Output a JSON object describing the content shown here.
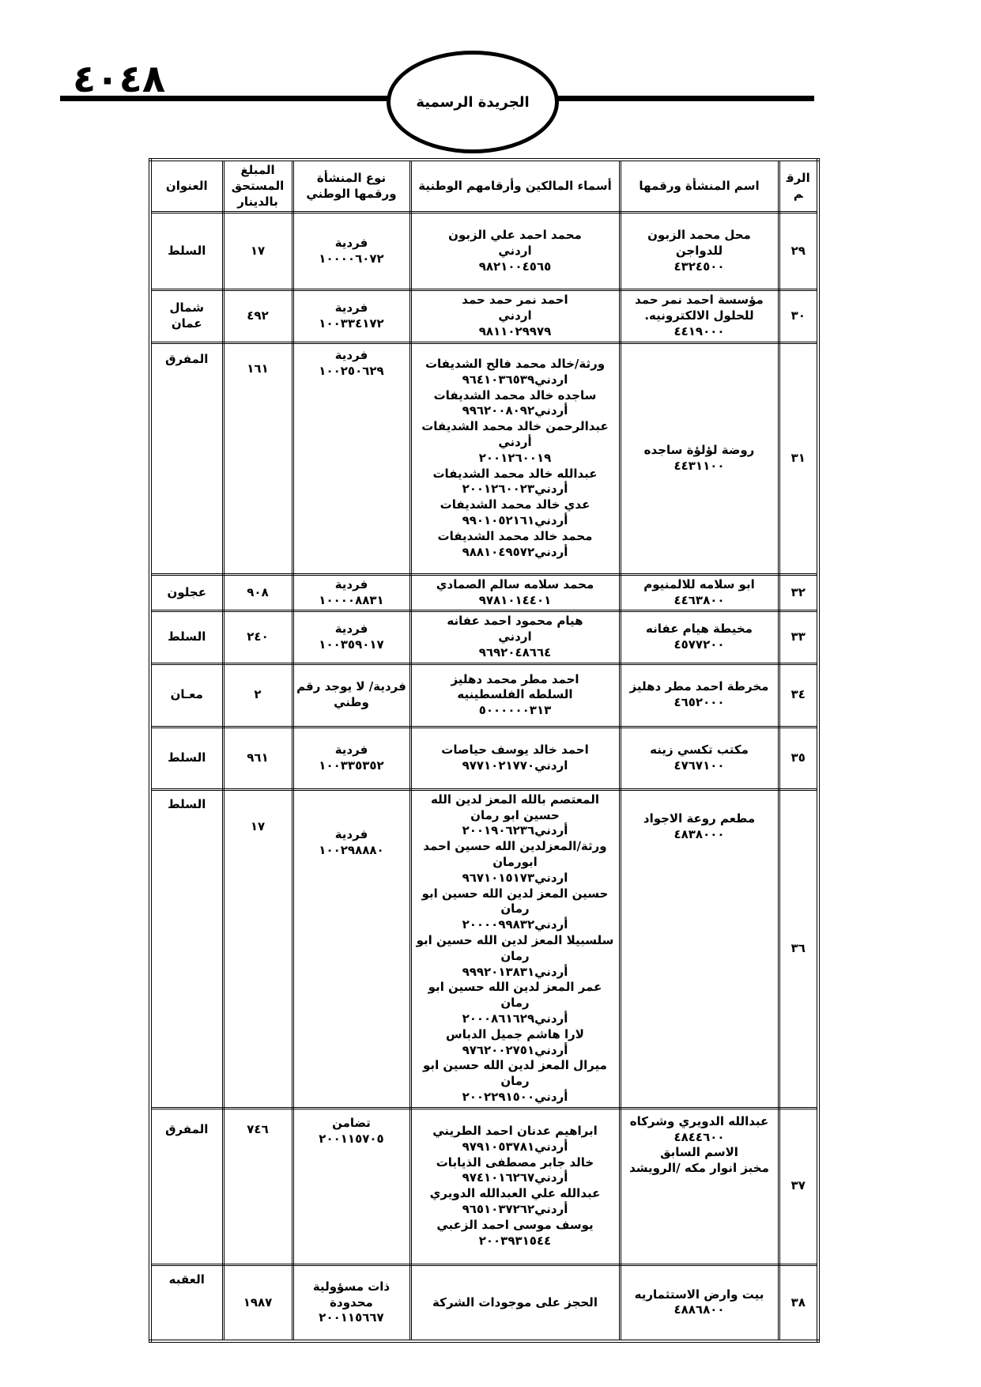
{
  "page": {
    "number": "٤٠٤٨",
    "banner": "الجريدة الرسمية"
  },
  "table": {
    "headers": {
      "num": "الرقم",
      "name": "اسم المنشأة ورقمها",
      "owners": "أسماء المالكين وأرقامهم الوطنية",
      "type": "نوع المنشأة ورقمها الوطني",
      "amount": "المبلغ المستحق بالدينار",
      "address": "العنوان"
    },
    "rows": [
      {
        "num": "٢٩",
        "name": "محل محمد الزبون للدواجن\n٤٣٢٤٥٠٠",
        "owners": "محمد احمد علي الزبون\nاردني\n٩٨٢١٠٠٤٥٦٥",
        "type": "فردية\n١٠٠٠٠٦٠٧٢",
        "amount": "١٧",
        "address": "السلط"
      },
      {
        "num": "٣٠",
        "name": "مؤسسة احمد نمر حمد للحلول الالكترونيه.\n٤٤١٩٠٠٠",
        "owners": "احمد نمر حمد حمد\nاردني\n٩٨١١٠٢٩٩٧٩",
        "type": "فردية\n١٠٠٣٣٤١٧٢",
        "amount": "٤٩٢",
        "address": "شمال عمان"
      },
      {
        "num": "٣١",
        "name": "روضة لؤلؤة ساجده\n٤٤٣١١٠٠",
        "owners": "ورثة/خالد محمد فالح الشديفات\nاردني٩٦٤١٠٣٦٥٣٩\nساجده خالد محمد الشديفات\nأردني٩٩٦٢٠٠٨٠٩٢\nعبدالرحمن خالد محمد الشديفات أردني\n٢٠٠١٢٦٠٠١٩\nعبدالله خالد محمد الشديفات\nأردني٢٠٠١٢٦٠٠٢٣\nعدي خالد محمد الشديفات\nأردني٩٩٠١٠٥٢١٦١\nمحمد خالد محمد الشديفات\nأردني٩٨٨١٠٤٩٥٧٢",
        "type": "فردية\n١٠٠٢٥٠٦٢٩",
        "amount": "١٦١",
        "address": "المفرق"
      },
      {
        "num": "٣٢",
        "name": "ابو سلامه للالمنيوم\n٤٤٦٣٨٠٠",
        "owners": "محمد سلامه سالم الصمادي\n٩٧٨١٠١٤٤٠١",
        "type": "فردية\n١٠٠٠٠٨٨٣١",
        "amount": "٩٠٨",
        "address": "عجلون"
      },
      {
        "num": "٣٣",
        "name": "مخيطة هيام عفانه\n٤٥٧٧٢٠٠",
        "owners": "هيام محمود احمد عفانه\nاردني\n٩٦٩٢٠٤٨٦٦٤",
        "type": "فردية\n١٠٠٣٥٩٠١٧",
        "amount": "٢٤٠",
        "address": "السلط"
      },
      {
        "num": "٣٤",
        "name": "مخرطة احمد مطر دهليز\n٤٦٥٢٠٠٠",
        "owners": "احمد مطر محمد دهليز\nالسلطه الفلسطينيه\n٥٠٠٠٠٠٠٣١٣",
        "type": "فردية/ لا يوجد رقم وطني",
        "amount": "٢",
        "address": "معـان"
      },
      {
        "num": "٣٥",
        "name": "مكتب تكسي زينه\n٤٧٦٧١٠٠",
        "owners": "احمد خالد يوسف حياصات\nاردني٩٧٧١٠٢١٧٧٠",
        "type": "فردية\n١٠٠٣٣٥٣٥٢",
        "amount": "٩٦١",
        "address": "السلط"
      },
      {
        "num": "٣٦",
        "name": "مطعم روعة الاجواد\n٤٨٣٨٠٠٠",
        "owners": "المعتصم بالله المعز لدين الله حسين ابو رمان\nأردني٢٠٠١٩٠٦٢٣٦\nورثة/المعزلدين الله حسين احمد ابورمان\nاردني٩٦٧١٠١٥١٧٣\nحسين المعز لدين الله حسين ابو رمان\nأردني٢٠٠٠٠٩٩٨٣٢\nسلسبيلا المعز لدين الله حسين ابو رمان\nأردني٩٩٩٢٠١٣٨٣١\nعمر المعز لدين الله حسين ابو رمان\nأردني٢٠٠٠٨٦١٦٢٩\nلارا هاشم جميل الدباس\nأردني٩٧٦٢٠٠٢٧٥١\nميرال المعز لدين الله حسين ابو رمان\nأردني٢٠٠٢٢٩١٥٠٠",
        "type": "فردية\n١٠٠٢٩٨٨٨٠",
        "amount": "١٧",
        "address": "السلط"
      },
      {
        "num": "٣٧",
        "name": "عبدالله الدويري وشركاه\n٤٨٤٤٦٠٠\nالاسم السابق\nمخبز انوار مكه /الرويشد",
        "owners": "ابراهيم عدنان احمد الطريني\nأردني٩٧٩١٠٥٣٧٨١\nخالد جابر مصطفى الذيابات\nأردني٩٧٤١٠١٦٢٦٧\nعبدالله علي العبدالله الدويري\nأردني٩٦٥١٠٣٧٢٦٢\nيوسف موسى احمد الزعبي\n٢٠٠٣٩٣١٥٤٤",
        "type": "تضامن\n٢٠٠١١٥٧٠٥",
        "amount": "٧٤٦",
        "address": "المفرق"
      },
      {
        "num": "٣٨",
        "name": "بيت وارض الاستثماريه\n٤٨٨٦٨٠٠",
        "owners": "الحجز على موجودات الشركة",
        "type": "ذات مسؤولية\nمحدودة\n٢٠٠١١٥٦٦٧",
        "amount": "١٩٨٧",
        "address": "العقبه"
      }
    ]
  }
}
